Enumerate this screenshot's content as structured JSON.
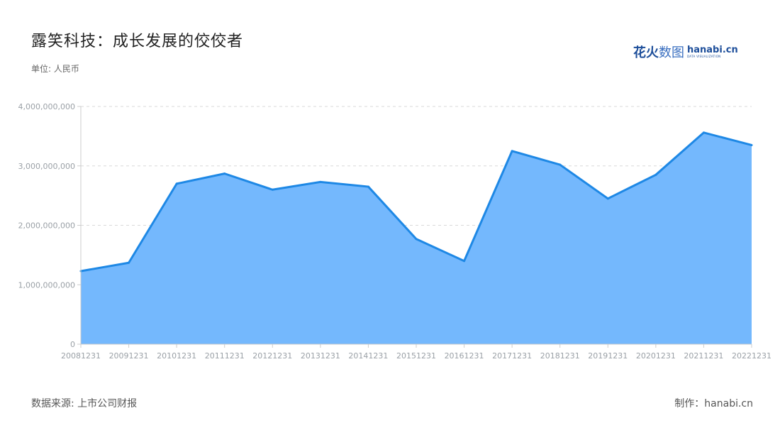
{
  "title": "露笑科技：成长发展的佼佼者",
  "unit_label": "单位: 人民币",
  "logo": {
    "cn_bold": "花火",
    "cn_light": "数图",
    "en": "hanabi.cn",
    "en_sub": "DATA VISUALIZATION"
  },
  "source": "数据来源: 上市公司财报",
  "credit": "制作：hanabi.cn",
  "colors": {
    "line": "#1e88e5",
    "area": "#74b8fd",
    "grid": "#d9d9d9",
    "axis": "#cccccc"
  },
  "chart_data": {
    "type": "area",
    "x": [
      "20081231",
      "20091231",
      "20101231",
      "20111231",
      "20121231",
      "20131231",
      "20141231",
      "20151231",
      "20161231",
      "20171231",
      "20181231",
      "20191231",
      "20201231",
      "20211231",
      "20221231"
    ],
    "values": [
      1230000000,
      1370000000,
      2700000000,
      2870000000,
      2600000000,
      2730000000,
      2650000000,
      1770000000,
      1400000000,
      3250000000,
      3020000000,
      2450000000,
      2850000000,
      3560000000,
      3350000000
    ],
    "ylim": [
      0,
      4000000000
    ],
    "y_ticks": [
      0,
      1000000000,
      2000000000,
      3000000000,
      4000000000
    ],
    "y_tick_labels": [
      "0",
      "1,000,000,000",
      "2,000,000,000",
      "3,000,000,000",
      "4,000,000,000"
    ],
    "grid": true,
    "legend": "none"
  }
}
